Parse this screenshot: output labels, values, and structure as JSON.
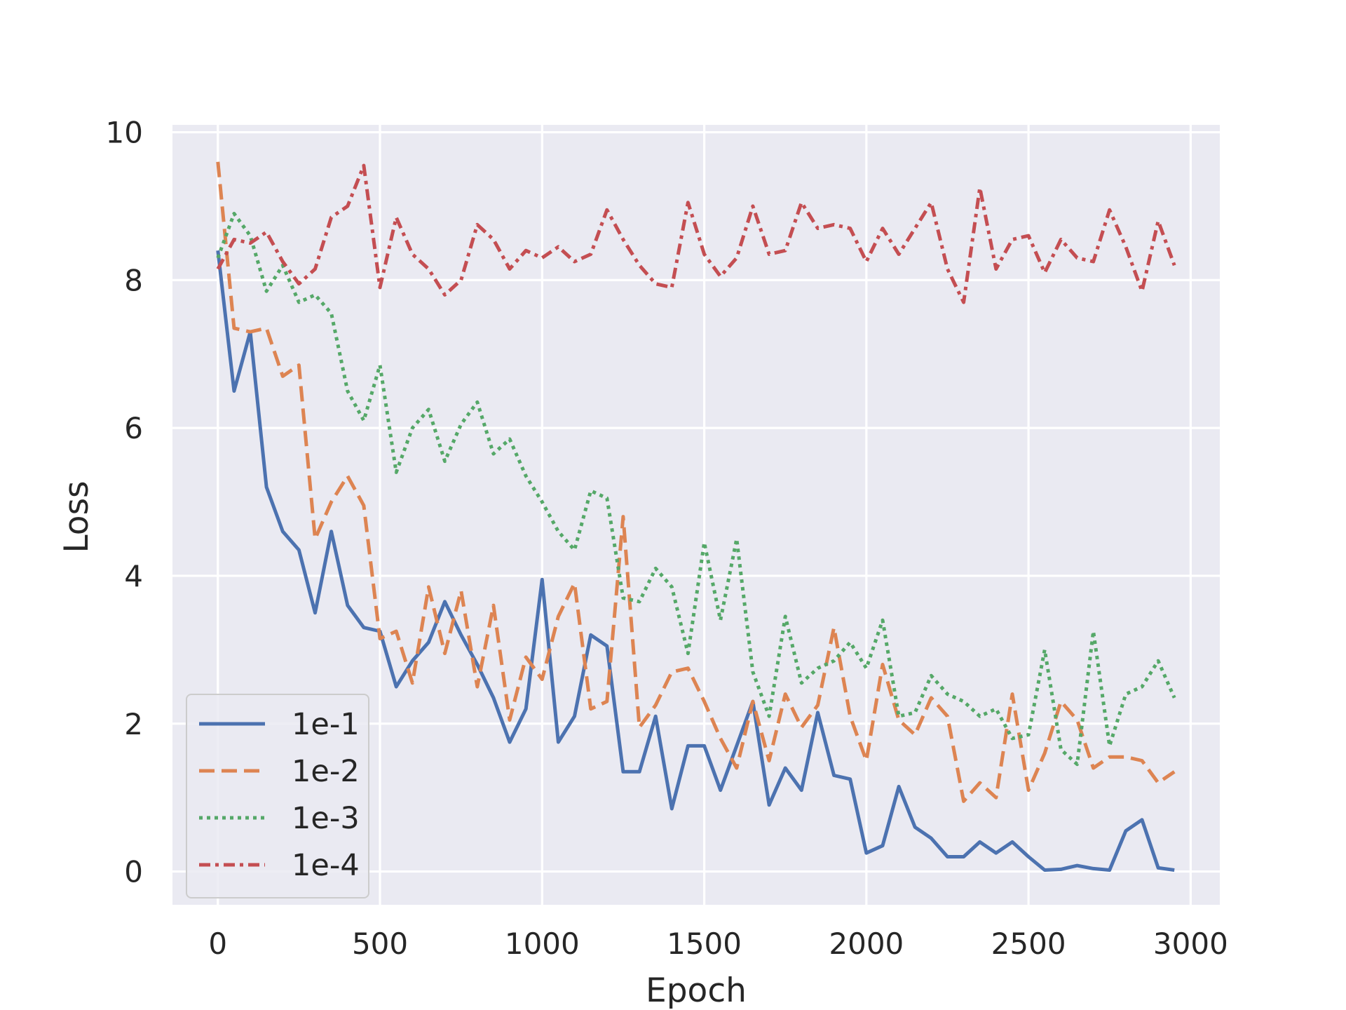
{
  "chart_data": {
    "type": "line",
    "title": "",
    "xlabel": "Epoch",
    "ylabel": "Loss",
    "xlim": [
      -140,
      3090
    ],
    "ylim": [
      -0.45,
      10.1
    ],
    "xticks": [
      0,
      500,
      1000,
      1500,
      2000,
      2500,
      3000
    ],
    "yticks": [
      0,
      2,
      4,
      6,
      8,
      10
    ],
    "grid": true,
    "legend_position": "bottom-left",
    "colors": {
      "background": "#eaeaf2",
      "grid": "#ffffff",
      "text": "#262626",
      "legend_border": "#cccccc"
    },
    "x": [
      0,
      50,
      100,
      150,
      200,
      250,
      300,
      350,
      400,
      450,
      500,
      550,
      600,
      650,
      700,
      750,
      800,
      850,
      900,
      950,
      1000,
      1050,
      1100,
      1150,
      1200,
      1250,
      1300,
      1350,
      1400,
      1450,
      1500,
      1550,
      1600,
      1650,
      1700,
      1750,
      1800,
      1850,
      1900,
      1950,
      2000,
      2050,
      2100,
      2150,
      2200,
      2250,
      2300,
      2350,
      2400,
      2450,
      2500,
      2550,
      2600,
      2650,
      2700,
      2750,
      2800,
      2850,
      2900,
      2950
    ],
    "series": [
      {
        "name": "1e-1",
        "color": "#4c72b0",
        "dash": "solid",
        "values": [
          8.4,
          6.5,
          7.3,
          5.2,
          4.6,
          4.35,
          3.5,
          4.6,
          3.6,
          3.3,
          3.25,
          2.5,
          2.85,
          3.1,
          3.65,
          3.2,
          2.8,
          2.35,
          1.75,
          2.2,
          3.95,
          1.75,
          2.1,
          3.2,
          3.05,
          1.35,
          1.35,
          2.1,
          0.85,
          1.7,
          1.7,
          1.1,
          1.7,
          2.3,
          0.9,
          1.4,
          1.1,
          2.15,
          1.3,
          1.25,
          0.25,
          0.35,
          1.15,
          0.6,
          0.45,
          0.2,
          0.2,
          0.4,
          0.25,
          0.4,
          0.2,
          0.02,
          0.03,
          0.08,
          0.04,
          0.02,
          0.55,
          0.7,
          0.05,
          0.02
        ]
      },
      {
        "name": "1e-2",
        "color": "#dd8452",
        "dash": "dashed",
        "values": [
          9.6,
          7.35,
          7.3,
          7.35,
          6.7,
          6.85,
          4.5,
          5.0,
          5.35,
          4.95,
          3.15,
          3.25,
          2.55,
          3.85,
          2.95,
          3.8,
          2.5,
          3.6,
          2.05,
          2.9,
          2.6,
          3.45,
          3.9,
          2.2,
          2.3,
          4.8,
          1.95,
          2.25,
          2.7,
          2.75,
          2.3,
          1.8,
          1.4,
          2.3,
          1.5,
          2.4,
          1.95,
          2.25,
          3.3,
          2.1,
          1.5,
          2.8,
          2.05,
          1.85,
          2.35,
          2.1,
          0.95,
          1.2,
          1.0,
          2.4,
          1.1,
          1.6,
          2.3,
          2.05,
          1.4,
          1.55,
          1.55,
          1.5,
          1.2,
          1.35
        ]
      },
      {
        "name": "1e-3",
        "color": "#55a868",
        "dash": "dotted",
        "values": [
          8.3,
          8.9,
          8.6,
          7.85,
          8.2,
          7.7,
          7.8,
          7.55,
          6.5,
          6.1,
          6.85,
          5.4,
          6.0,
          6.25,
          5.55,
          6.05,
          6.35,
          5.65,
          5.85,
          5.35,
          5.0,
          4.6,
          4.35,
          5.15,
          5.05,
          3.7,
          3.65,
          4.1,
          3.85,
          2.95,
          4.45,
          3.4,
          4.5,
          2.7,
          2.1,
          3.45,
          2.55,
          2.75,
          2.85,
          3.1,
          2.75,
          3.4,
          2.1,
          2.15,
          2.65,
          2.4,
          2.3,
          2.1,
          2.2,
          1.8,
          1.85,
          3.0,
          1.65,
          1.45,
          3.25,
          1.7,
          2.4,
          2.5,
          2.85,
          2.35
        ]
      },
      {
        "name": "1e-4",
        "color": "#c44e52",
        "dash": "dashdot",
        "values": [
          8.15,
          8.55,
          8.5,
          8.65,
          8.25,
          7.95,
          8.15,
          8.85,
          9.0,
          9.55,
          7.9,
          8.85,
          8.35,
          8.15,
          7.8,
          8.0,
          8.75,
          8.55,
          8.15,
          8.4,
          8.3,
          8.45,
          8.25,
          8.35,
          8.95,
          8.55,
          8.2,
          7.95,
          7.9,
          9.05,
          8.35,
          8.05,
          8.3,
          9.0,
          8.35,
          8.4,
          9.05,
          8.7,
          8.75,
          8.7,
          8.25,
          8.7,
          8.35,
          8.7,
          9.05,
          8.15,
          7.7,
          9.25,
          8.15,
          8.55,
          8.6,
          8.1,
          8.55,
          8.3,
          8.25,
          8.95,
          8.45,
          7.85,
          8.8,
          8.2
        ]
      }
    ]
  }
}
